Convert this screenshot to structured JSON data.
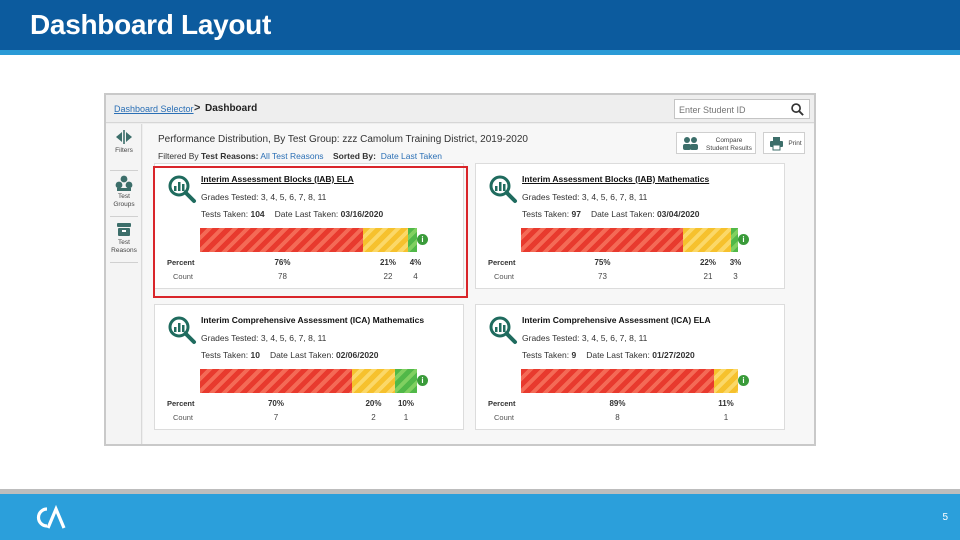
{
  "slide": {
    "title": "Dashboard Layout",
    "page_number": "5",
    "colors": {
      "title_bar": "#0c5b9e",
      "footer_bar": "#2b9fdb",
      "highlight": "#d9252a"
    },
    "logo_icon": "ca-logo-icon"
  },
  "breadcrumb": {
    "link": "Dashboard Selector",
    "separator": ">",
    "current": "Dashboard"
  },
  "search": {
    "placeholder": "Enter Student ID",
    "icon": "search-icon"
  },
  "sidebar": {
    "items": [
      {
        "label": "Filters",
        "icon": "filter-arrows-icon"
      },
      {
        "label_line1": "Test",
        "label_line2": "Groups",
        "icon": "test-groups-icon"
      },
      {
        "label_line1": "Test",
        "label_line2": "Reasons",
        "icon": "test-reasons-icon"
      }
    ]
  },
  "header": {
    "title": "Performance Distribution, By Test Group: zzz Camolum Training District, 2019-2020",
    "filtered_by_label": "Filtered By",
    "test_reasons_label": "Test Reasons:",
    "test_reasons_value": "All Test Reasons",
    "sorted_by_label": "Sorted By:",
    "sorted_by_value": "Date Last Taken",
    "compare_button_line1": "Compare",
    "compare_button_line2": "Student Results",
    "print_button": "Print"
  },
  "labels": {
    "percent": "Percent",
    "count": "Count",
    "grades_tested_prefix": "Grades Tested:",
    "tests_taken_prefix": "Tests Taken:",
    "date_last_taken_prefix": "Date Last Taken:"
  },
  "cards": [
    {
      "title": "Interim Assessment Blocks (IAB) ELA",
      "grades": "3, 4, 5, 6, 7, 8, 11",
      "tests_taken": "104",
      "date_last_taken": "03/16/2020",
      "segments": [
        {
          "color": "red",
          "share": 0.76,
          "percent": "76%",
          "count": "78"
        },
        {
          "color": "yellow",
          "share": 0.21,
          "percent": "21%",
          "count": "22"
        },
        {
          "color": "green",
          "share": 0.04,
          "percent": "4%",
          "count": "4"
        }
      ]
    },
    {
      "title": "Interim Assessment Blocks (IAB) Mathematics",
      "grades": "3, 4, 5, 6, 7, 8, 11",
      "tests_taken": "97",
      "date_last_taken": "03/04/2020",
      "segments": [
        {
          "color": "red",
          "share": 0.75,
          "percent": "75%",
          "count": "73"
        },
        {
          "color": "yellow",
          "share": 0.22,
          "percent": "22%",
          "count": "21"
        },
        {
          "color": "green",
          "share": 0.03,
          "percent": "3%",
          "count": "3"
        }
      ]
    },
    {
      "title": "Interim Comprehensive Assessment (ICA) Mathematics",
      "grades": "3, 4, 5, 6, 7, 8, 11",
      "tests_taken": "10",
      "date_last_taken": "02/06/2020",
      "segments": [
        {
          "color": "red",
          "share": 0.7,
          "percent": "70%",
          "count": "7"
        },
        {
          "color": "yellow",
          "share": 0.2,
          "percent": "20%",
          "count": "2"
        },
        {
          "color": "green",
          "share": 0.1,
          "percent": "10%",
          "count": "1"
        }
      ]
    },
    {
      "title": "Interim Comprehensive Assessment (ICA) ELA",
      "grades": "3, 4, 5, 6, 7, 8, 11",
      "tests_taken": "9",
      "date_last_taken": "01/27/2020",
      "segments": [
        {
          "color": "red",
          "share": 0.89,
          "percent": "89%",
          "count": "8"
        },
        {
          "color": "yellow",
          "share": 0.11,
          "percent": "11%",
          "count": "1"
        }
      ]
    }
  ]
}
